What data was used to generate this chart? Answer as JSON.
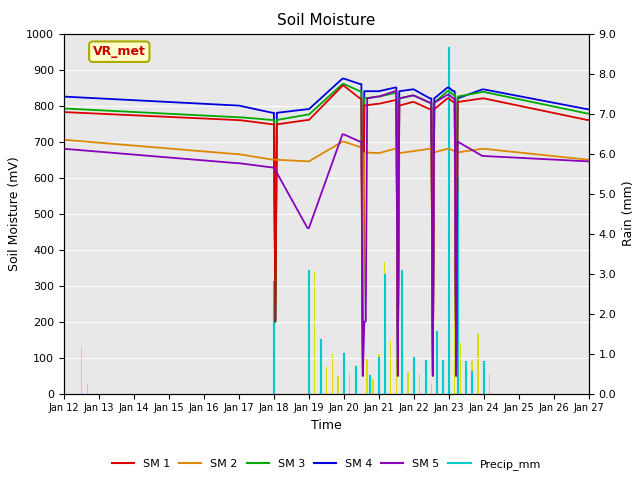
{
  "title": "Soil Moisture",
  "xlabel": "Time",
  "ylabel_left": "Soil Moisture (mV)",
  "ylabel_right": "Rain (mm)",
  "ylim_left": [
    0,
    1000
  ],
  "ylim_right": [
    0,
    9.0
  ],
  "background_color": "#e8e8e8",
  "annotation_text": "VR_met",
  "annotation_color": "#cc0000",
  "line_colors": {
    "SM 1": "#dd0000",
    "SM 2": "#dd8800",
    "SM 3": "#00aa00",
    "SM 4": "#0000dd",
    "SM 5": "#8800bb",
    "Precip_mm": "#00cccc",
    "TZ ppt": "#dddd00"
  },
  "tick_positions": [
    0,
    24,
    48,
    72,
    96,
    120,
    144,
    168,
    192,
    216,
    240,
    264,
    288,
    312,
    336,
    360
  ],
  "date_labels": [
    "Jan 12",
    "Jan 13",
    "Jan 14",
    "Jan 15",
    "Jan 16",
    "Jan 17",
    "Jan 18",
    "Jan 19",
    "Jan 20",
    "Jan 21",
    "Jan 22",
    "Jan 23",
    "Jan 24",
    "Jan 25",
    "Jan 26",
    "Jan 27"
  ],
  "yticks_left": [
    0,
    100,
    200,
    300,
    400,
    500,
    600,
    700,
    800,
    900,
    1000
  ],
  "yticks_right": [
    0.0,
    1.0,
    2.0,
    3.0,
    4.0,
    5.0,
    6.0,
    7.0,
    8.0,
    9.0
  ],
  "n_points": 361
}
